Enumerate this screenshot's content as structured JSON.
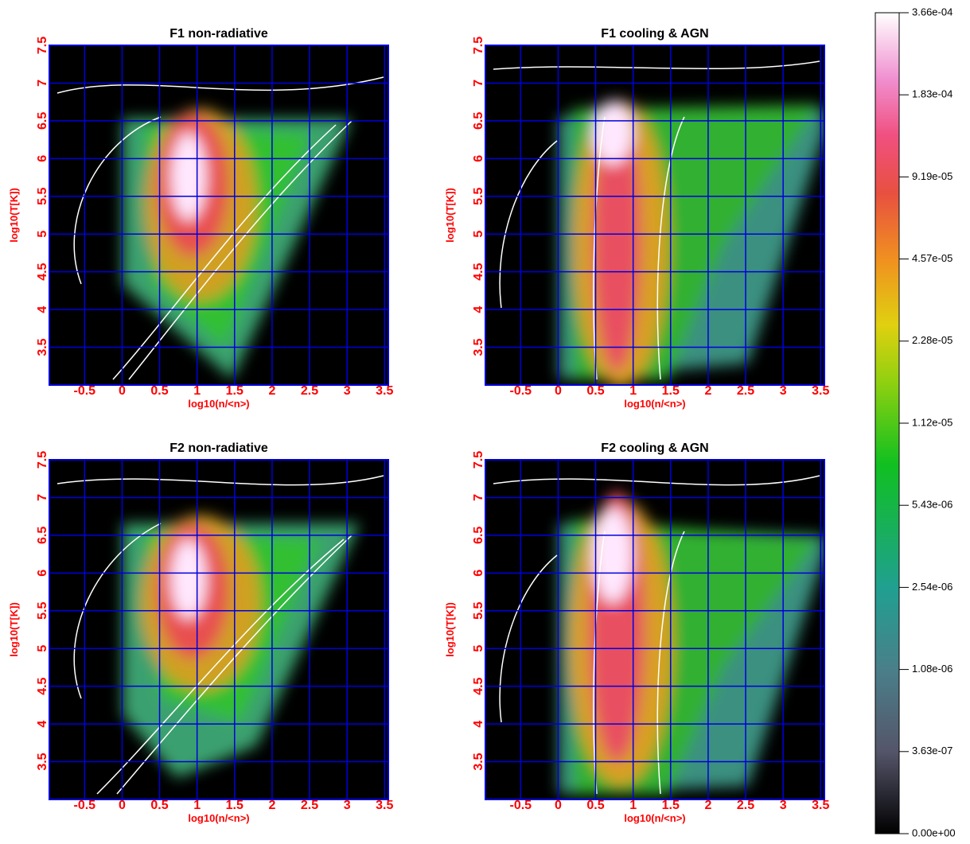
{
  "chart_data": [
    {
      "type": "heatmap",
      "title": "F1  non-radiative",
      "xlabel": "log10(n/<n>)",
      "ylabel": "log10(T[K])",
      "xlim": [
        -0.97,
        3.55
      ],
      "ylim": [
        3.0,
        7.5
      ],
      "xticks": [
        -0.5,
        0,
        0.5,
        1,
        1.5,
        2,
        2.5,
        3,
        3.5
      ],
      "yticks": [
        3.5,
        4,
        4.5,
        5,
        5.5,
        6,
        6.5,
        7,
        7.5
      ],
      "grid": true,
      "grid_color": "#0000dd"
    },
    {
      "type": "heatmap",
      "title": "F1  cooling & AGN",
      "xlabel": "log10(n/<n>)",
      "ylabel": "log10(T[K])",
      "xlim": [
        -0.97,
        3.55
      ],
      "ylim": [
        3.0,
        7.5
      ],
      "xticks": [
        -0.5,
        0,
        0.5,
        1,
        1.5,
        2,
        2.5,
        3,
        3.5
      ],
      "yticks": [
        3.5,
        4,
        4.5,
        5,
        5.5,
        6,
        6.5,
        7,
        7.5
      ],
      "grid": true,
      "grid_color": "#0000dd"
    },
    {
      "type": "heatmap",
      "title": "F2 non-radiative",
      "xlabel": "log10(n/<n>)",
      "ylabel": "log10(T[K])",
      "xlim": [
        -0.97,
        3.55
      ],
      "ylim": [
        3.0,
        7.5
      ],
      "xticks": [
        -0.5,
        0,
        0.5,
        1,
        1.5,
        2,
        2.5,
        3,
        3.5
      ],
      "yticks": [
        3.5,
        4,
        4.5,
        5,
        5.5,
        6,
        6.5,
        7,
        7.5
      ],
      "grid": true,
      "grid_color": "#0000dd"
    },
    {
      "type": "heatmap",
      "title": "F2 cooling & AGN",
      "xlabel": "log10(n/<n>)",
      "ylabel": "log10(T[K])",
      "xlim": [
        -0.97,
        3.55
      ],
      "ylim": [
        3.0,
        7.5
      ],
      "xticks": [
        -0.5,
        0,
        0.5,
        1,
        1.5,
        2,
        2.5,
        3,
        3.5
      ],
      "yticks": [
        3.5,
        4,
        4.5,
        5,
        5.5,
        6,
        6.5,
        7,
        7.5
      ],
      "grid": true,
      "grid_color": "#0000dd"
    },
    {
      "type": "colorbar",
      "ticks": [
        {
          "value": 0,
          "label": "0.00e+00"
        },
        {
          "value": 3.63e-07,
          "label": "3.63e-07"
        },
        {
          "value": 1.08e-06,
          "label": "1.08e-06"
        },
        {
          "value": 2.54e-06,
          "label": "2.54e-06"
        },
        {
          "value": 5.43e-06,
          "label": "5.43e-06"
        },
        {
          "value": 1.12e-05,
          "label": "1.12e-05"
        },
        {
          "value": 2.28e-05,
          "label": "2.28e-05"
        },
        {
          "value": 4.57e-05,
          "label": "4.57e-05"
        },
        {
          "value": 9.19e-05,
          "label": "9.19e-05"
        },
        {
          "value": 0.000183,
          "label": "1.83e-04"
        },
        {
          "value": 0.000366,
          "label": "3.66e-04"
        }
      ]
    }
  ]
}
